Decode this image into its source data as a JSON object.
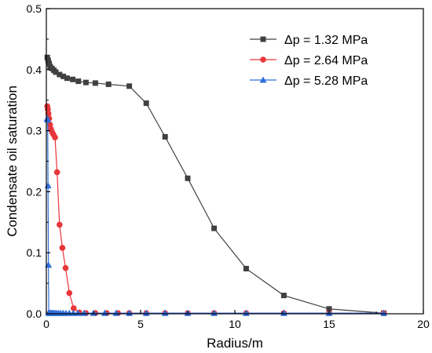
{
  "chart_data": {
    "type": "line",
    "title": "",
    "xlabel": "Radius/m",
    "ylabel": "Condensate oil saturation",
    "xlim": [
      0,
      20
    ],
    "ylim": [
      0,
      0.5
    ],
    "x_ticks": [
      0,
      5,
      10,
      15,
      20
    ],
    "y_ticks": [
      0.0,
      0.1,
      0.2,
      0.3,
      0.4,
      0.5
    ],
    "x_tick_labels": [
      "0",
      "5",
      "10",
      "15",
      "20"
    ],
    "y_tick_labels": [
      "0.0",
      "0.1",
      "0.2",
      "0.3",
      "0.4",
      "0.5"
    ],
    "grid": false,
    "legend_position": "top-right",
    "series": [
      {
        "name": "Δp = 1.32 MPa",
        "color": "#404040",
        "marker": "square",
        "x": [
          0.05,
          0.1,
          0.15,
          0.2,
          0.3,
          0.4,
          0.5,
          0.7,
          0.9,
          1.1,
          1.4,
          1.7,
          2.1,
          2.6,
          3.3,
          4.4,
          5.3,
          6.3,
          7.5,
          8.9,
          10.6,
          12.6,
          15.0,
          17.9
        ],
        "y": [
          0.42,
          0.415,
          0.41,
          0.405,
          0.402,
          0.399,
          0.396,
          0.392,
          0.389,
          0.386,
          0.384,
          0.381,
          0.379,
          0.378,
          0.376,
          0.373,
          0.345,
          0.29,
          0.222,
          0.14,
          0.074,
          0.03,
          0.008,
          0.001
        ]
      },
      {
        "name": "Δp = 2.64 MPa",
        "color": "#e8363a",
        "marker": "circle",
        "x": [
          0.05,
          0.08,
          0.11,
          0.15,
          0.19,
          0.24,
          0.3,
          0.37,
          0.46,
          0.57,
          0.7,
          0.85,
          1.02,
          1.22,
          1.45,
          1.75,
          2.1,
          2.6,
          3.2,
          3.8,
          4.4,
          5.3,
          6.3,
          7.5,
          8.9,
          10.6,
          12.6,
          15.0,
          17.9
        ],
        "y": [
          0.34,
          0.335,
          0.328,
          0.32,
          0.31,
          0.303,
          0.298,
          0.294,
          0.289,
          0.232,
          0.146,
          0.108,
          0.075,
          0.034,
          0.009,
          0.002,
          0.001,
          0.001,
          0.001,
          0.001,
          0.001,
          0.001,
          0.001,
          0.001,
          0.001,
          0.001,
          0.001,
          0.001,
          0.001
        ]
      },
      {
        "name": "Δp = 5.28 MPa",
        "color": "#2f6fdc",
        "marker": "triangle",
        "x": [
          0.05,
          0.07,
          0.09,
          0.11,
          0.13,
          0.15,
          0.17,
          0.19,
          0.22,
          0.26,
          0.3,
          0.35,
          0.41,
          0.48,
          0.56,
          0.65,
          0.76,
          0.89,
          1.04,
          1.22,
          1.43,
          1.68,
          2.0,
          2.5,
          3.1,
          3.7,
          4.4,
          5.3,
          6.3,
          7.5,
          8.9,
          10.6,
          12.6,
          15.0,
          17.9
        ],
        "y": [
          0.32,
          0.318,
          0.21,
          0.08,
          0.002,
          0.001,
          0.001,
          0.001,
          0.001,
          0.001,
          0.001,
          0.001,
          0.001,
          0.001,
          0.001,
          0.001,
          0.001,
          0.001,
          0.001,
          0.001,
          0.001,
          0.001,
          0.001,
          0.001,
          0.001,
          0.001,
          0.001,
          0.001,
          0.001,
          0.001,
          0.001,
          0.001,
          0.001,
          0.001,
          0.001
        ]
      }
    ]
  }
}
